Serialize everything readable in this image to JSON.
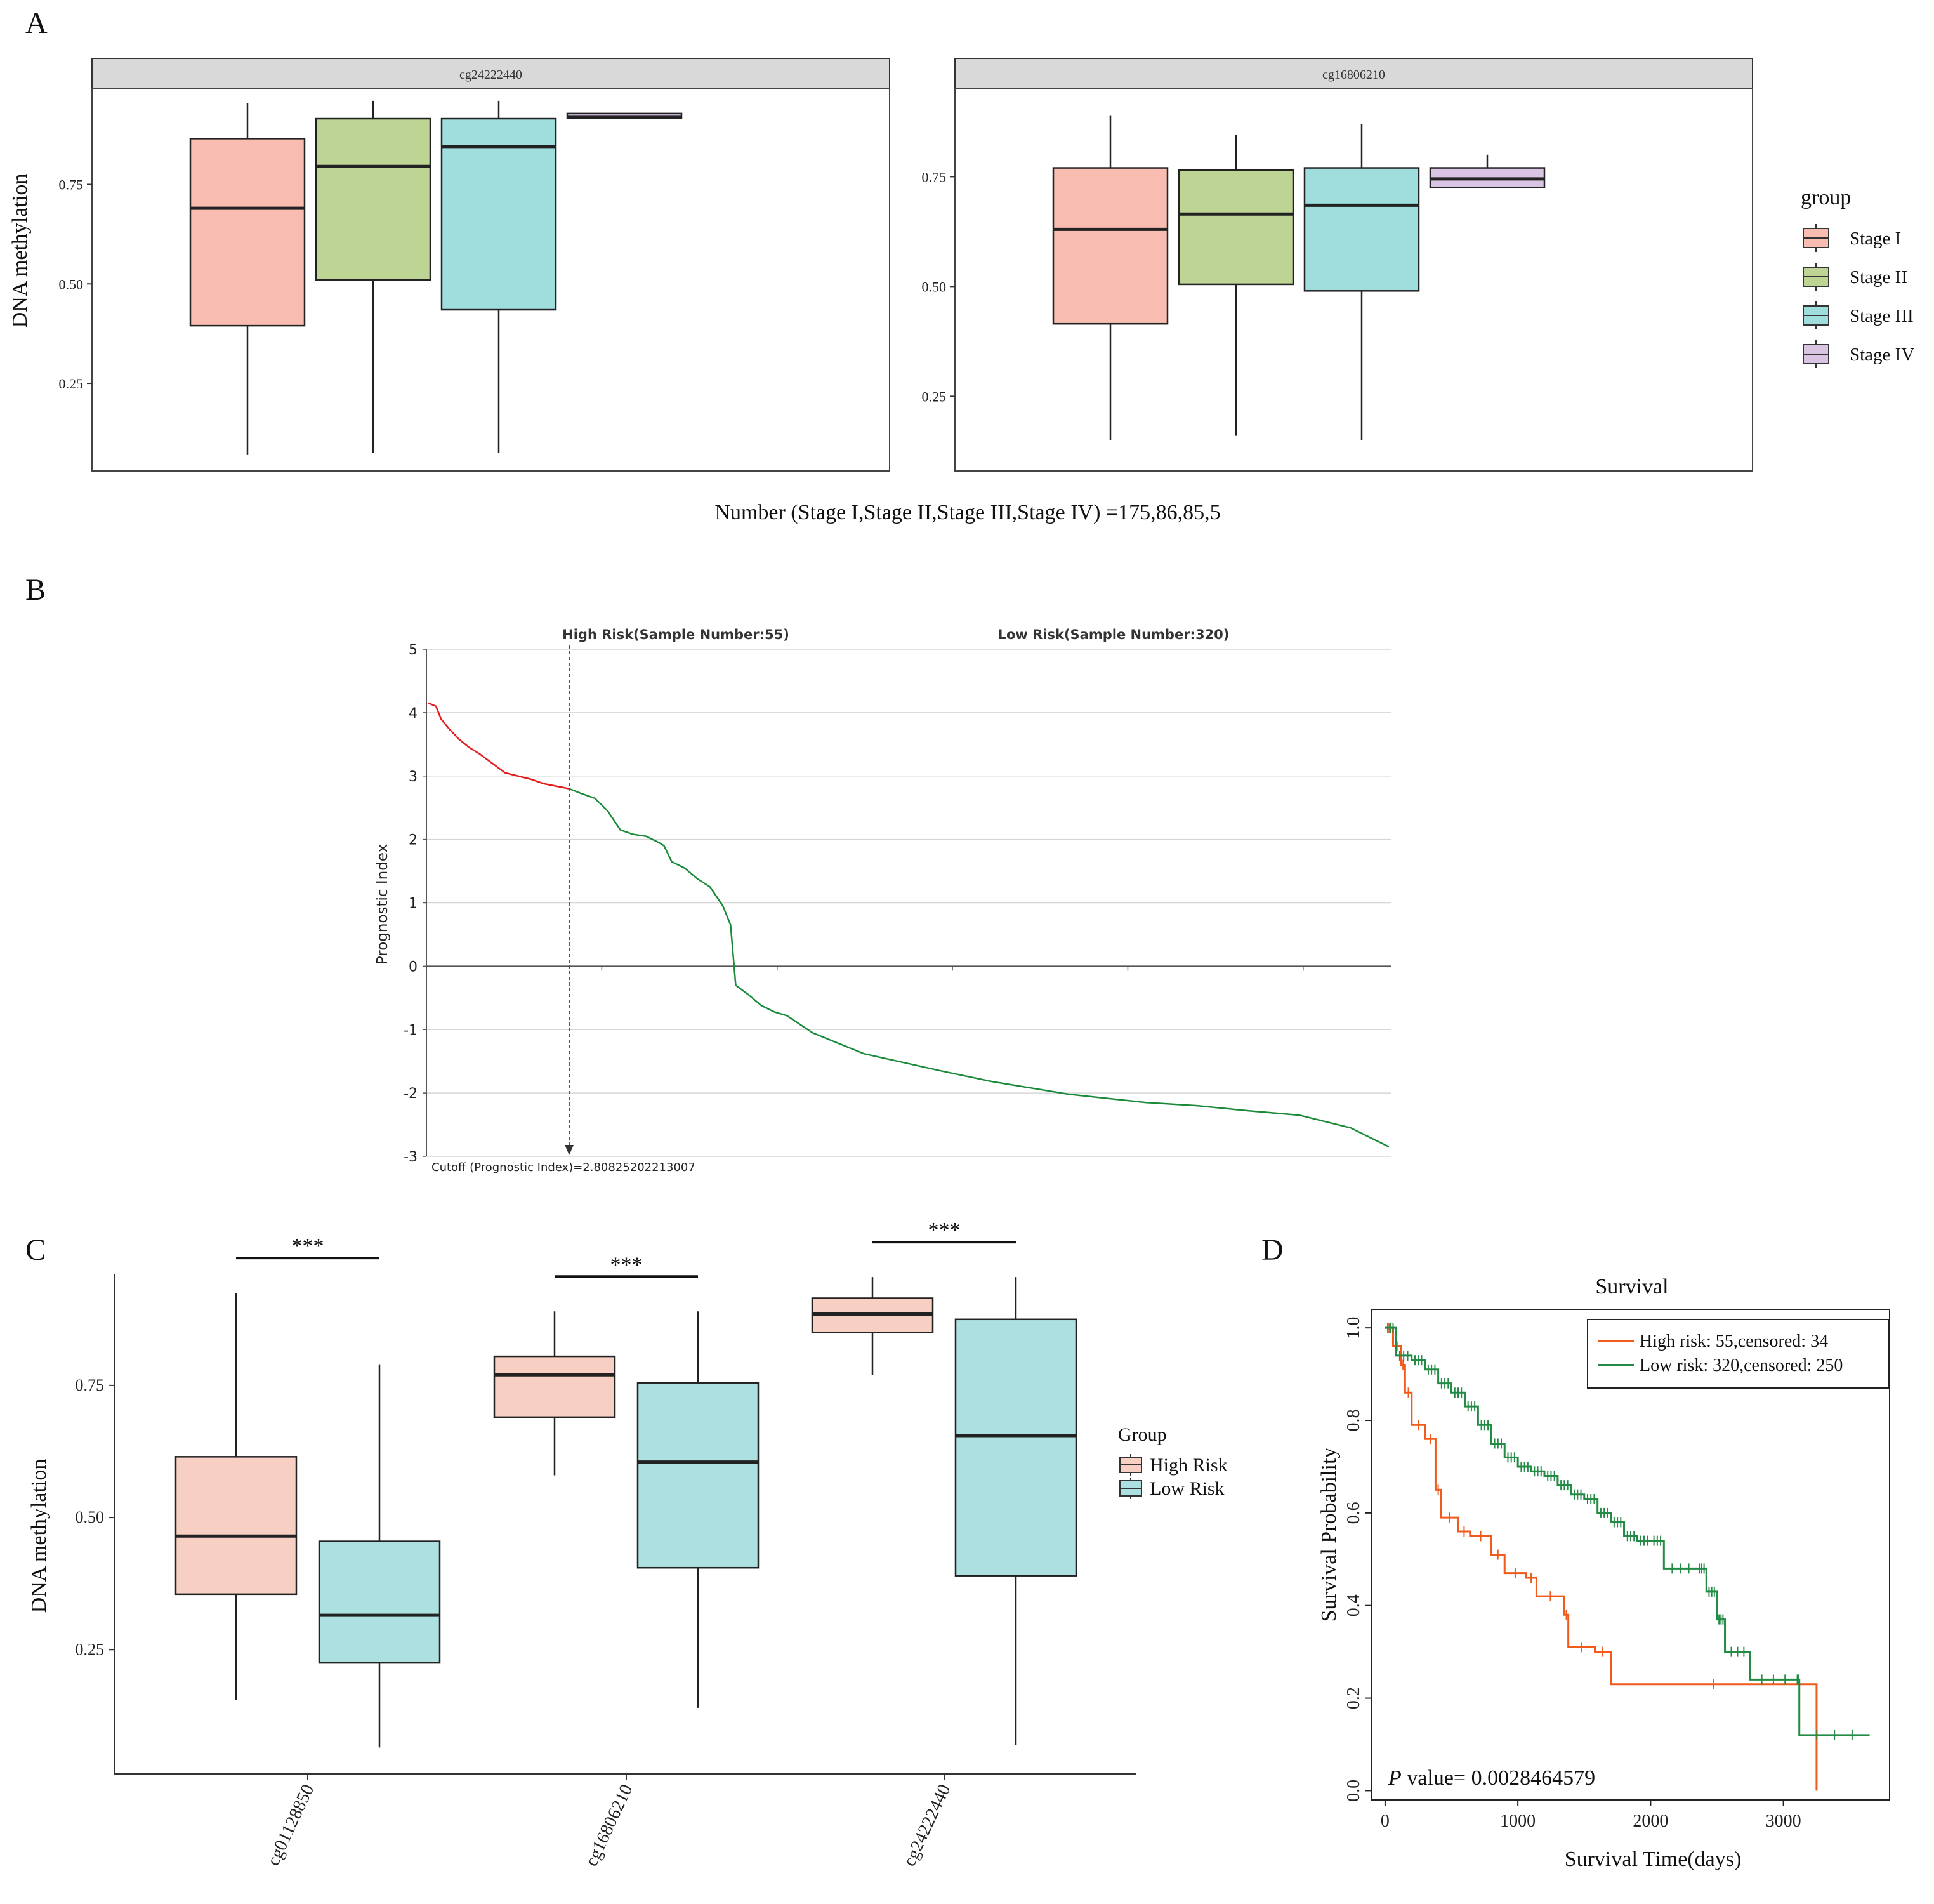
{
  "panels": {
    "a": "A",
    "b": "B",
    "c": "C",
    "d": "D"
  },
  "colors": {
    "stage1": "#F8BCB0",
    "stage2": "#BDD494",
    "stage3": "#A0DEDE",
    "stage4": "#D9C5E3",
    "high": "#F8CFC3",
    "low": "#ADE0E0",
    "red": "#E41A1C",
    "green": "#1B8A3A",
    "orange": "#F05A1A",
    "kmgreen": "#238B45"
  },
  "chart_data": [
    {
      "type": "box",
      "panel": "A",
      "ylabel": "DNA methylation",
      "note": "Number (Stage I,Stage II,Stage III,Stage IV) =175,86,85,5",
      "legend": {
        "title": "group",
        "items": [
          "Stage I",
          "Stage II",
          "Stage III",
          "Stage IV"
        ]
      },
      "facets": [
        {
          "title": "cg24222440",
          "ylim": [
            0.03,
            0.99
          ],
          "yticks": [
            "0.25",
            "0.50",
            "0.75"
          ],
          "boxes": [
            {
              "group": "Stage I",
              "min": 0.07,
              "q1": 0.395,
              "median": 0.69,
              "q3": 0.865,
              "max": 0.955
            },
            {
              "group": "Stage II",
              "min": 0.075,
              "q1": 0.51,
              "median": 0.795,
              "q3": 0.915,
              "max": 0.96
            },
            {
              "group": "Stage III",
              "min": 0.075,
              "q1": 0.435,
              "median": 0.845,
              "q3": 0.915,
              "max": 0.96
            },
            {
              "group": "Stage IV",
              "min": 0.917,
              "q1": 0.917,
              "median": 0.92,
              "q3": 0.928,
              "max": 0.928
            }
          ]
        },
        {
          "title": "cg16806210",
          "ylim": [
            0.08,
            0.95
          ],
          "yticks": [
            "0.25",
            "0.50",
            "0.75"
          ],
          "boxes": [
            {
              "group": "Stage I",
              "min": 0.15,
              "q1": 0.415,
              "median": 0.63,
              "q3": 0.77,
              "max": 0.89
            },
            {
              "group": "Stage II",
              "min": 0.16,
              "q1": 0.505,
              "median": 0.665,
              "q3": 0.765,
              "max": 0.845
            },
            {
              "group": "Stage III",
              "min": 0.15,
              "q1": 0.49,
              "median": 0.685,
              "q3": 0.77,
              "max": 0.87
            },
            {
              "group": "Stage IV",
              "min": 0.725,
              "q1": 0.725,
              "median": 0.745,
              "q3": 0.77,
              "max": 0.8
            }
          ]
        }
      ]
    },
    {
      "type": "line",
      "panel": "B",
      "ylabel": "Prognostic Index",
      "ylim": [
        -3,
        5
      ],
      "yticks": [
        "5",
        "4",
        "3",
        "2",
        "1",
        "0",
        "-1",
        "-2",
        "-3"
      ],
      "high_label": "High Risk(Sample Number:55)",
      "low_label": "Low Risk(Sample Number:320)",
      "cutoff_label": "Cutoff (Prognostic Index)=2.80825202213007",
      "x": [
        0,
        3,
        5,
        8,
        12,
        16,
        20,
        25,
        30,
        35,
        40,
        45,
        50,
        55,
        60,
        65,
        70,
        75,
        80,
        85,
        90,
        92,
        95,
        100,
        105,
        110,
        115,
        118,
        120,
        125,
        130,
        135,
        140,
        150,
        170,
        200,
        220,
        250,
        280,
        300,
        320,
        340,
        360,
        375
      ],
      "y": [
        4.15,
        4.1,
        3.9,
        3.75,
        3.58,
        3.45,
        3.35,
        3.2,
        3.05,
        3,
        2.95,
        2.88,
        2.84,
        2.8,
        2.72,
        2.65,
        2.45,
        2.15,
        2.08,
        2.05,
        1.95,
        1.9,
        1.65,
        1.55,
        1.38,
        1.25,
        0.95,
        0.65,
        -0.3,
        -0.45,
        -0.62,
        -0.72,
        -0.78,
        -1.05,
        -1.38,
        -1.65,
        -1.82,
        -2.02,
        -2.15,
        -2.2,
        -2.28,
        -2.35,
        -2.55,
        -2.85
      ],
      "cutoff_index": 55
    },
    {
      "type": "box",
      "panel": "C",
      "ylabel": "DNA methylation",
      "legend": {
        "title": "Group",
        "items": [
          "High Risk",
          "Low Risk"
        ]
      },
      "ylim": [
        0.015,
        0.96
      ],
      "yticks": [
        "0.25",
        "0.50",
        "0.75"
      ],
      "categories": [
        "cg01128850",
        "cg16806210",
        "cg24222440"
      ],
      "significance": [
        "***",
        "***",
        "***"
      ],
      "boxes": [
        {
          "cat": "cg01128850",
          "group": "High Risk",
          "min": 0.155,
          "q1": 0.355,
          "median": 0.465,
          "q3": 0.615,
          "max": 0.925
        },
        {
          "cat": "cg01128850",
          "group": "Low Risk",
          "min": 0.065,
          "q1": 0.225,
          "median": 0.315,
          "q3": 0.455,
          "max": 0.79
        },
        {
          "cat": "cg16806210",
          "group": "High Risk",
          "min": 0.58,
          "q1": 0.69,
          "median": 0.77,
          "q3": 0.805,
          "max": 0.89
        },
        {
          "cat": "cg16806210",
          "group": "Low Risk",
          "min": 0.14,
          "q1": 0.405,
          "median": 0.605,
          "q3": 0.755,
          "max": 0.89
        },
        {
          "cat": "cg24222440",
          "group": "High Risk",
          "min": 0.77,
          "q1": 0.85,
          "median": 0.885,
          "q3": 0.915,
          "max": 0.955
        },
        {
          "cat": "cg24222440",
          "group": "Low Risk",
          "min": 0.07,
          "q1": 0.39,
          "median": 0.655,
          "q3": 0.875,
          "max": 0.955
        }
      ]
    },
    {
      "type": "line",
      "panel": "D",
      "title": "Survival",
      "xlabel": "Survival Time(days)",
      "ylabel": "Survival Probability",
      "xlim": [
        -100,
        3800
      ],
      "ylim": [
        -0.02,
        1.04
      ],
      "xticks": [
        "0",
        "1000",
        "2000",
        "3000"
      ],
      "yticks": [
        "0.0",
        "0.2",
        "0.4",
        "0.6",
        "0.8",
        "1.0"
      ],
      "pvalue_label": "P",
      "pvalue_text": " value= 0.0028464579",
      "series": [
        {
          "name": "High risk: 55,censored: 34",
          "x": [
            0,
            60,
            120,
            150,
            200,
            300,
            380,
            420,
            550,
            640,
            800,
            900,
            1060,
            1140,
            1350,
            1380,
            1580,
            1700,
            3250
          ],
          "y": [
            1.0,
            0.96,
            0.92,
            0.86,
            0.79,
            0.76,
            0.65,
            0.59,
            0.56,
            0.55,
            0.51,
            0.47,
            0.46,
            0.42,
            0.38,
            0.31,
            0.3,
            0.23,
            0.0
          ]
        },
        {
          "name": "Low  risk: 320,censored: 250",
          "x": [
            0,
            80,
            200,
            300,
            400,
            500,
            600,
            700,
            800,
            900,
            1000,
            1100,
            1200,
            1300,
            1400,
            1500,
            1600,
            1700,
            1800,
            1900,
            2000,
            2100,
            2350,
            2420,
            2500,
            2560,
            2750,
            3100,
            3120,
            3650
          ],
          "y": [
            1.0,
            0.94,
            0.93,
            0.91,
            0.88,
            0.86,
            0.83,
            0.79,
            0.75,
            0.72,
            0.7,
            0.69,
            0.68,
            0.66,
            0.64,
            0.63,
            0.6,
            0.58,
            0.55,
            0.54,
            0.54,
            0.48,
            0.48,
            0.43,
            0.37,
            0.3,
            0.24,
            0.24,
            0.12,
            0.12
          ]
        }
      ]
    }
  ]
}
